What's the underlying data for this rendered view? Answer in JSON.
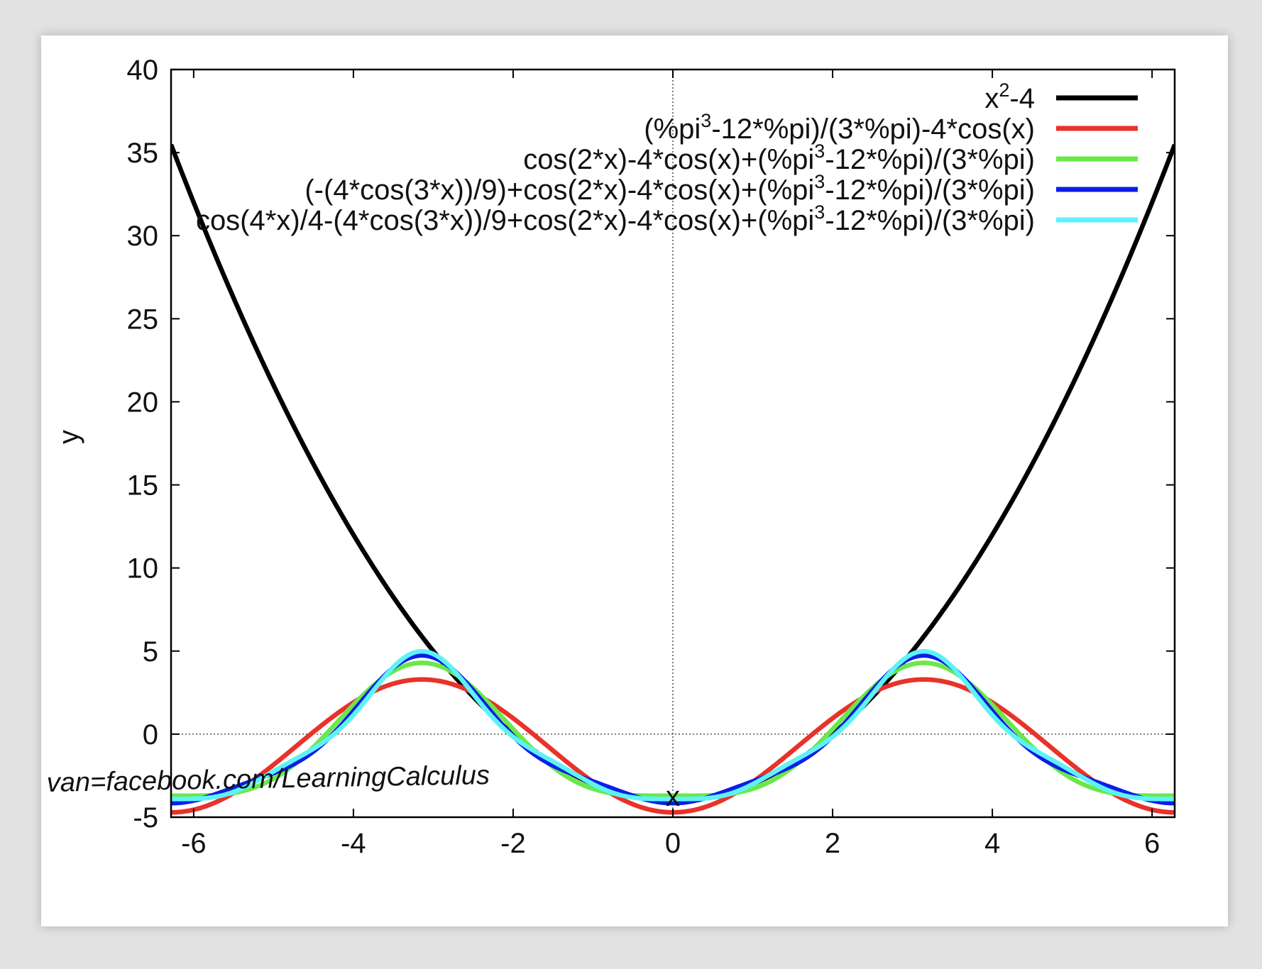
{
  "chart_data": {
    "type": "line",
    "xlabel": "x",
    "ylabel": "y",
    "xlim": [
      -6.2832,
      6.2832
    ],
    "ylim": [
      -5,
      40
    ],
    "xticks": [
      "-6",
      "-4",
      "-2",
      "0",
      "2",
      "4",
      "6"
    ],
    "yticks": [
      "-5",
      "0",
      "5",
      "10",
      "15",
      "20",
      "25",
      "30",
      "35",
      "40"
    ],
    "zero_axes": true,
    "grid": false,
    "legend_position": "top-right",
    "series": [
      {
        "name": "x^2-4",
        "name_parts": [
          "x",
          "2",
          "-4"
        ],
        "color": "#000000",
        "formula": "x^2-4"
      },
      {
        "name": "(%pi^3-12*%pi)/(3*%pi)-4*cos(x)",
        "name_parts": [
          "(%pi",
          "3",
          "-12*%pi)/(3*%pi)-4*cos(x)"
        ],
        "color": "#e8322a",
        "formula": "c0-4cos(x)"
      },
      {
        "name": "cos(2*x)-4*cos(x)+(%pi^3-12*%pi)/(3*%pi)",
        "name_parts": [
          "cos(2*x)-4*cos(x)+(%pi",
          "3",
          "-12*%pi)/(3*%pi)"
        ],
        "color": "#6ae84a",
        "formula": "cos(2x)-4cos(x)+c0"
      },
      {
        "name": "(-(4*cos(3*x))/9)+cos(2*x)-4*cos(x)+(%pi^3-12*%pi)/(3*%pi)",
        "name_parts": [
          "(-(4*cos(3*x))/9)+cos(2*x)-4*cos(x)+(%pi",
          "3",
          "-12*%pi)/(3*%pi)"
        ],
        "color": "#0a1ee6",
        "formula": "-(4cos(3x))/9+cos(2x)-4cos(x)+c0"
      },
      {
        "name": "cos(4*x)/4-(4*cos(3*x))/9+cos(2*x)-4*cos(x)+(%pi^3-12*%pi)/(3*%pi)",
        "name_parts": [
          "cos(4*x)/4-(4*cos(3*x))/9+cos(2*x)-4*cos(x)+(%pi",
          "3",
          "-12*%pi)/(3*%pi)"
        ],
        "color": "#5ef2f7",
        "formula": "cos(4x)/4-(4cos(3x))/9+cos(2x)-4cos(x)+c0"
      }
    ]
  },
  "watermark": "van=facebook.com/LearningCalculus"
}
